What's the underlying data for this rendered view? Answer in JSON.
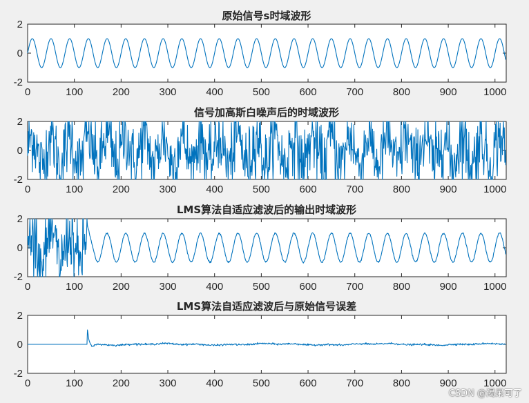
{
  "colors": {
    "line": "#0072bd",
    "axis": "#262626",
    "background": "#f0f0f0"
  },
  "watermark": "CSDN @渴呆可了",
  "chart_data": [
    {
      "type": "line",
      "title": "原始信号s时域波形",
      "xlim": [
        0,
        1024
      ],
      "ylim": [
        -2,
        2
      ],
      "xticks": [
        0,
        100,
        200,
        300,
        400,
        500,
        600,
        700,
        800,
        900,
        1000
      ],
      "yticks": [
        -2,
        0,
        2
      ],
      "signal": {
        "kind": "sine",
        "amplitude": 1,
        "period_samples": 40,
        "samples": 1024
      }
    },
    {
      "type": "line",
      "title": "信号加高斯白噪声后的时域波形",
      "xlim": [
        0,
        1024
      ],
      "ylim": [
        -2,
        2
      ],
      "xticks": [
        0,
        100,
        200,
        300,
        400,
        500,
        600,
        700,
        800,
        900,
        1000
      ],
      "yticks": [
        -2,
        0,
        2
      ],
      "signal": {
        "kind": "sine_plus_noise",
        "amplitude": 1,
        "period_samples": 40,
        "noise_std": 1.2,
        "samples": 1024
      }
    },
    {
      "type": "line",
      "title": "LMS算法自适应滤波后的输出时域波形",
      "xlim": [
        0,
        1024
      ],
      "ylim": [
        -2,
        2
      ],
      "xticks": [
        0,
        100,
        200,
        300,
        400,
        500,
        600,
        700,
        800,
        900,
        1000
      ],
      "yticks": [
        -2,
        0,
        2
      ],
      "signal": {
        "kind": "lms_output",
        "amplitude": 1,
        "period_samples": 40,
        "converge_at": 128,
        "samples": 1024
      }
    },
    {
      "type": "line",
      "title": "LMS算法自适应滤波后与原始信号误差",
      "xlim": [
        0,
        1024
      ],
      "ylim": [
        -2,
        2
      ],
      "xticks": [
        0,
        100,
        200,
        300,
        400,
        500,
        600,
        700,
        800,
        900,
        1000
      ],
      "yticks": [
        -2,
        0,
        2
      ],
      "signal": {
        "kind": "lms_error",
        "converge_at": 128,
        "peak": 1.0,
        "samples": 1024
      }
    }
  ]
}
